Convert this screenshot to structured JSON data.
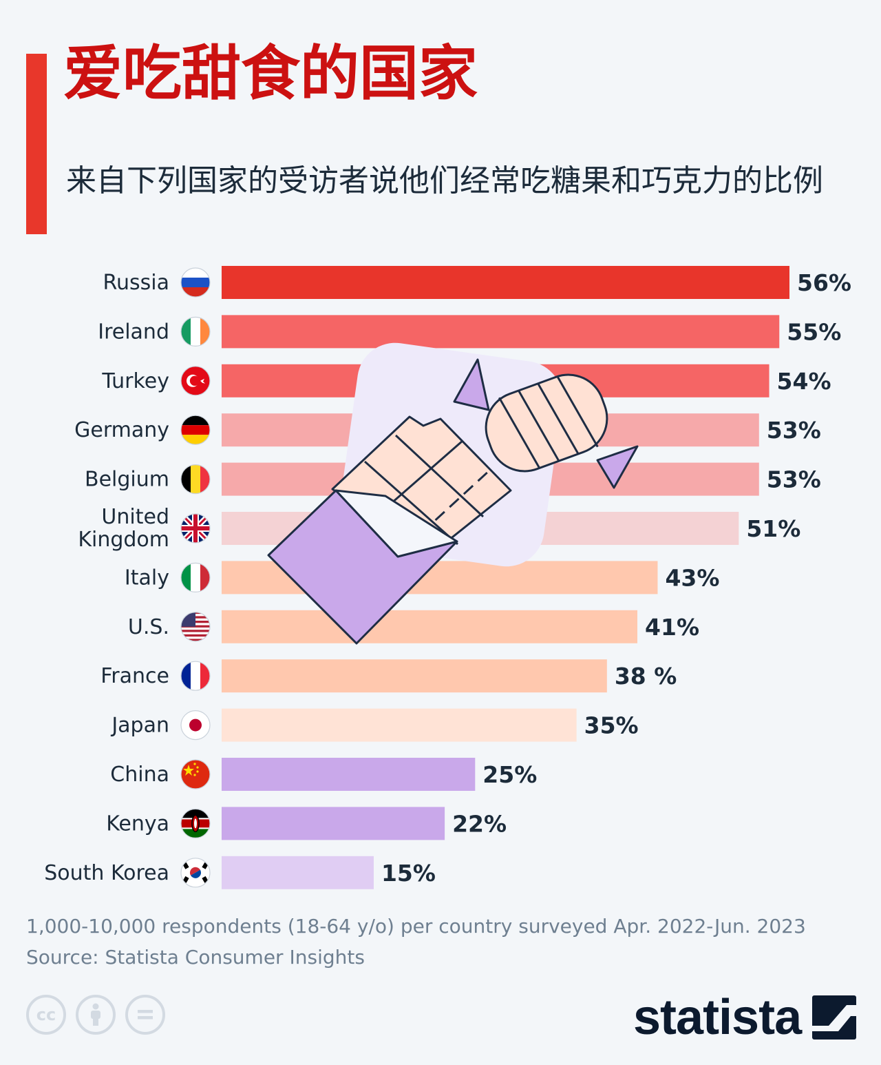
{
  "title": "爱吃甜食的国家",
  "subtitle": "来自下列国家的受访者说他们经常吃糖果和巧克力的比例",
  "chart_data": {
    "type": "bar",
    "orientation": "horizontal",
    "unit": "%",
    "categories": [
      "Russia",
      "Ireland",
      "Turkey",
      "Germany",
      "Belgium",
      "United Kingdom",
      "Italy",
      "U.S.",
      "France",
      "Japan",
      "China",
      "Kenya",
      "South Korea"
    ],
    "category_lines": [
      [
        "Russia"
      ],
      [
        "Ireland"
      ],
      [
        "Turkey"
      ],
      [
        "Germany"
      ],
      [
        "Belgium"
      ],
      [
        "United",
        "Kingdom"
      ],
      [
        "Italy"
      ],
      [
        "U.S."
      ],
      [
        "France"
      ],
      [
        "Japan"
      ],
      [
        "China"
      ],
      [
        "Kenya"
      ],
      [
        "South Korea"
      ]
    ],
    "values": [
      56,
      55,
      54,
      53,
      53,
      51,
      43,
      41,
      38,
      35,
      25,
      22,
      15
    ],
    "value_labels": [
      "56%",
      "55%",
      "54%",
      "53%",
      "53%",
      "51%",
      "43%",
      "41%",
      "38 %",
      "35%",
      "25%",
      "22%",
      "15%"
    ],
    "bar_colors": [
      "#e8352b",
      "#f56565",
      "#f56565",
      "#f6a9aa",
      "#f6a9aa",
      "#f4d2d4",
      "#ffc8ae",
      "#ffc8ae",
      "#ffc8ae",
      "#ffe3d6",
      "#c9a8ea",
      "#c9a8ea",
      "#e0cdf3"
    ],
    "flags": [
      "flag-russia",
      "flag-ireland",
      "flag-turkey",
      "flag-germany",
      "flag-belgium",
      "flag-uk",
      "flag-italy",
      "flag-us",
      "flag-france",
      "flag-japan",
      "flag-china",
      "flag-kenya",
      "flag-south-korea"
    ],
    "xlim": [
      0,
      56
    ],
    "xlabel": "",
    "ylabel": ""
  },
  "illustration": "chocolate-bar-and-candy-icon",
  "footnote": {
    "line1": "1,000-10,000 respondents (18-64 y/o) per country surveyed Apr. 2022-Jun. 2023",
    "line2": "Source: Statista Consumer Insights"
  },
  "license_icons": [
    "cc-icon",
    "attribution-icon",
    "no-derivatives-icon"
  ],
  "brand": {
    "name": "statista"
  },
  "colors": {
    "accent": "#e8372b",
    "title": "#cc1111",
    "text": "#1c2b3a",
    "footnote": "#6e7f90"
  }
}
